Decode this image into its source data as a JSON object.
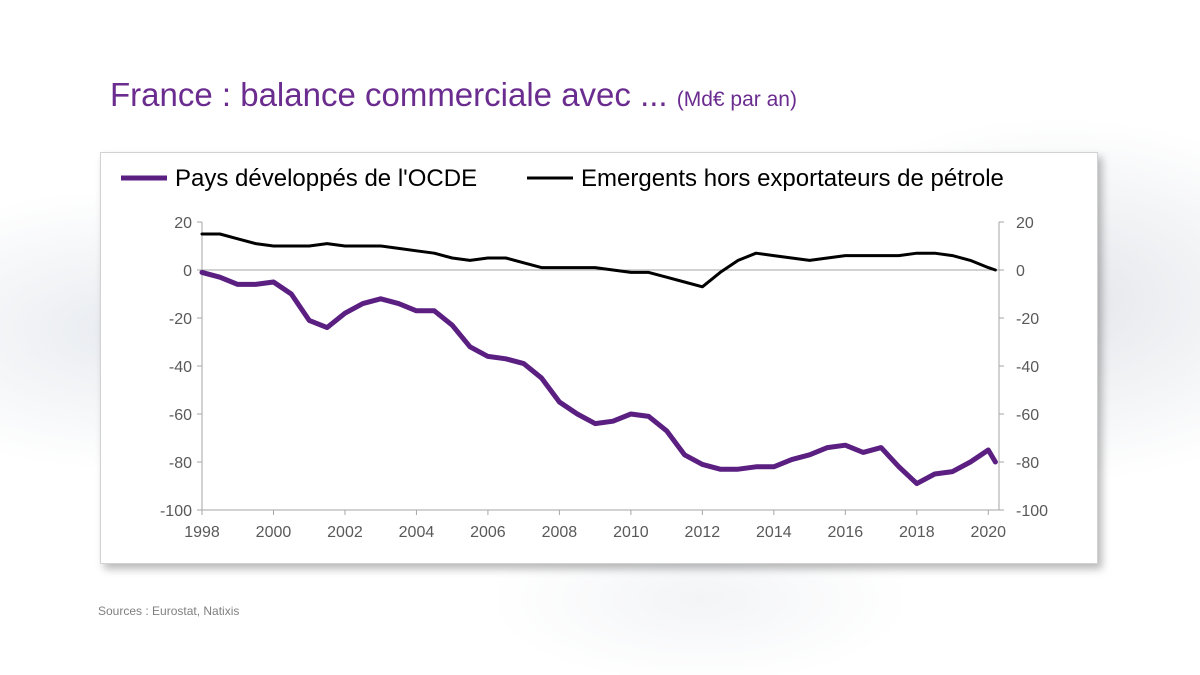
{
  "slide": {
    "title": "France : balance commerciale avec ...",
    "title_unit": "(Md€ par an)",
    "source": "Sources : Eurostat, Natixis"
  },
  "chart_data": {
    "type": "line",
    "title": "",
    "xlabel": "",
    "ylabel": "",
    "xlim": [
      1998,
      2020.3
    ],
    "ylim": [
      -100,
      20
    ],
    "y_ticks": [
      20,
      0,
      -20,
      -40,
      -60,
      -80,
      -100
    ],
    "x_ticks": [
      1998,
      2000,
      2002,
      2004,
      2006,
      2008,
      2010,
      2012,
      2014,
      2016,
      2018,
      2020
    ],
    "secondary_y_axis": true,
    "grid": false,
    "legend": "top",
    "colors": {
      "purple": "#5b1f82",
      "black": "#000000"
    },
    "series": [
      {
        "name": "Pays développés de l'OCDE",
        "color": "#5b1f82",
        "x": [
          1998,
          1998.5,
          1999,
          1999.5,
          2000,
          2000.5,
          2001,
          2001.5,
          2002,
          2002.5,
          2003,
          2003.5,
          2004,
          2004.5,
          2005,
          2005.5,
          2006,
          2006.5,
          2007,
          2007.5,
          2008,
          2008.5,
          2009,
          2009.5,
          2010,
          2010.5,
          2011,
          2011.5,
          2012,
          2012.5,
          2013,
          2013.5,
          2014,
          2014.5,
          2015,
          2015.5,
          2016,
          2016.5,
          2017,
          2017.5,
          2018,
          2018.5,
          2019,
          2019.5,
          2020,
          2020.2
        ],
        "y": [
          -1,
          -3,
          -6,
          -6,
          -5,
          -10,
          -21,
          -24,
          -18,
          -14,
          -12,
          -14,
          -17,
          -17,
          -23,
          -32,
          -36,
          -37,
          -39,
          -45,
          -55,
          -60,
          -64,
          -63,
          -60,
          -61,
          -67,
          -77,
          -81,
          -83,
          -83,
          -82,
          -82,
          -79,
          -77,
          -74,
          -73,
          -76,
          -74,
          -82,
          -89,
          -85,
          -84,
          -80,
          -75,
          -80
        ]
      },
      {
        "name": "Emergents hors exportateurs de pétrole",
        "color": "#000000",
        "x": [
          1998,
          1998.5,
          1999,
          1999.5,
          2000,
          2000.5,
          2001,
          2001.5,
          2002,
          2002.5,
          2003,
          2003.5,
          2004,
          2004.5,
          2005,
          2005.5,
          2006,
          2006.5,
          2007,
          2007.5,
          2008,
          2008.5,
          2009,
          2009.5,
          2010,
          2010.5,
          2011,
          2011.5,
          2012,
          2012.5,
          2013,
          2013.5,
          2014,
          2014.5,
          2015,
          2015.5,
          2016,
          2016.5,
          2017,
          2017.5,
          2018,
          2018.5,
          2019,
          2019.5,
          2020,
          2020.2
        ],
        "y": [
          15,
          15,
          13,
          11,
          10,
          10,
          10,
          11,
          10,
          10,
          10,
          9,
          8,
          7,
          5,
          4,
          5,
          5,
          3,
          1,
          1,
          1,
          1,
          0,
          -1,
          -1,
          -3,
          -5,
          -7,
          -1,
          4,
          7,
          6,
          5,
          4,
          5,
          6,
          6,
          6,
          6,
          7,
          7,
          6,
          4,
          1,
          0
        ]
      }
    ]
  }
}
